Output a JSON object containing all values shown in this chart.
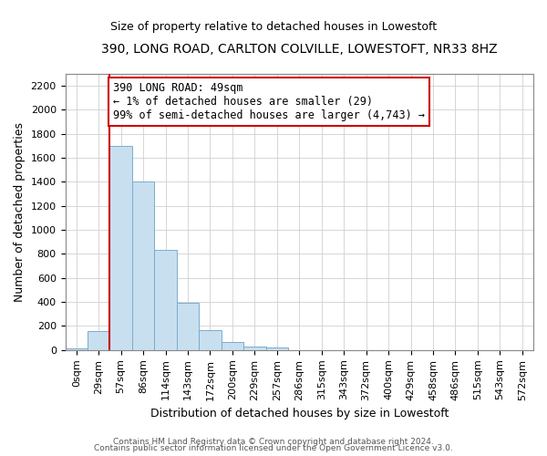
{
  "title": "390, LONG ROAD, CARLTON COLVILLE, LOWESTOFT, NR33 8HZ",
  "subtitle": "Size of property relative to detached houses in Lowestoft",
  "xlabel": "Distribution of detached houses by size in Lowestoft",
  "ylabel": "Number of detached properties",
  "bar_labels": [
    "0sqm",
    "29sqm",
    "57sqm",
    "86sqm",
    "114sqm",
    "143sqm",
    "172sqm",
    "200sqm",
    "229sqm",
    "257sqm",
    "286sqm",
    "315sqm",
    "343sqm",
    "372sqm",
    "400sqm",
    "429sqm",
    "458sqm",
    "486sqm",
    "515sqm",
    "543sqm",
    "572sqm"
  ],
  "bar_heights": [
    15,
    160,
    1700,
    1400,
    830,
    390,
    165,
    65,
    30,
    25,
    0,
    0,
    0,
    0,
    0,
    0,
    0,
    0,
    0,
    0,
    0
  ],
  "bar_color": "#c8dff0",
  "bar_edge_color": "#7aaccc",
  "highlight_color": "#cc0000",
  "ylim": [
    0,
    2300
  ],
  "yticks": [
    0,
    200,
    400,
    600,
    800,
    1000,
    1200,
    1400,
    1600,
    1800,
    2000,
    2200
  ],
  "annotation_line1": "390 LONG ROAD: 49sqm",
  "annotation_line2": "← 1% of detached houses are smaller (29)",
  "annotation_line3": "99% of semi-detached houses are larger (4,743) →",
  "footnote1": "Contains HM Land Registry data © Crown copyright and database right 2024.",
  "footnote2": "Contains public sector information licensed under the Open Government Licence v3.0.",
  "title_fontsize": 10,
  "subtitle_fontsize": 9,
  "ylabel_fontsize": 9,
  "xlabel_fontsize": 9,
  "tick_fontsize": 8,
  "annot_fontsize": 8.5,
  "footnote_fontsize": 6.5
}
